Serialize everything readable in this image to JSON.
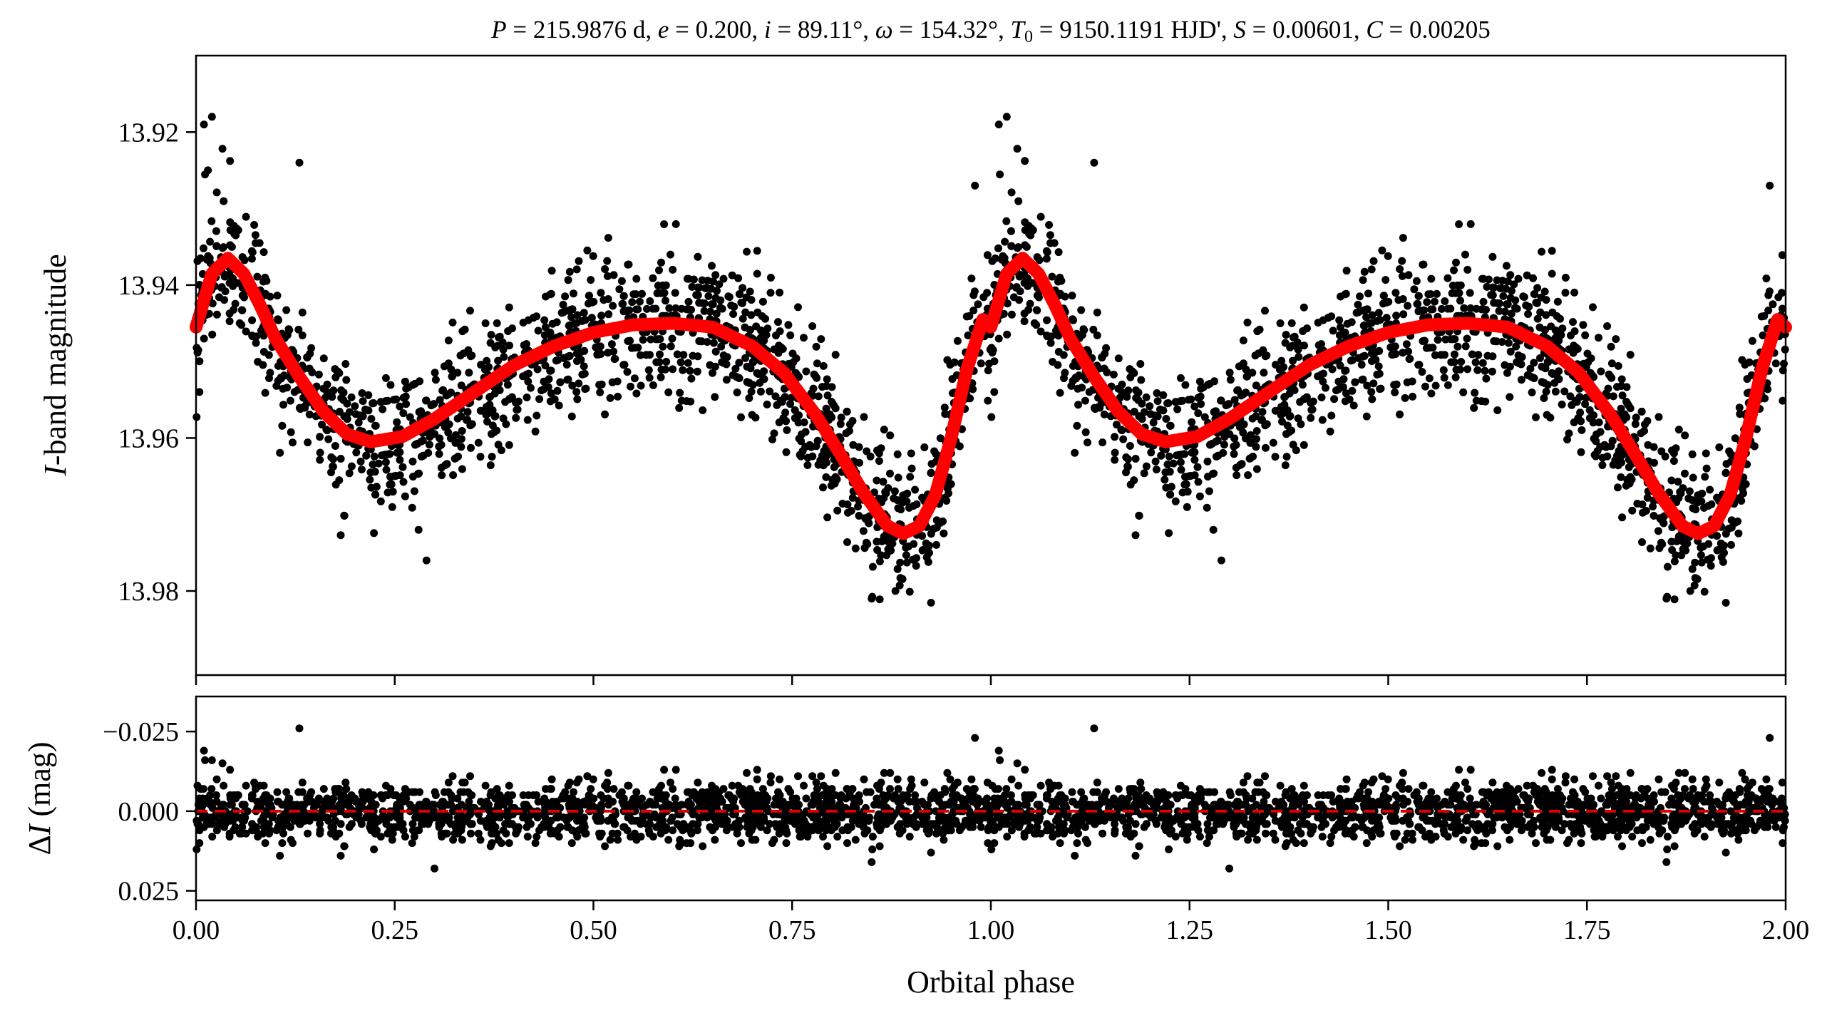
{
  "figure_title": "P = 215.9876 d, e = 0.200, i = 89.11°, ω = 154.32°, T0 = 9150.1191 HJD', S = 0.00601, C = 0.00205",
  "chart_data": [
    {
      "type": "scatter",
      "panel": "light curve",
      "title": "P = 215.9876 d, e = 0.200, i = 89.11°, ω = 154.32°, T0 = 9150.1191 HJD', S = 0.00601, C = 0.00205",
      "xlabel": "",
      "ylabel": "I-band magnitude",
      "xlim": [
        0.0,
        2.0
      ],
      "ylim": [
        13.991,
        13.91
      ],
      "y_inverted": true,
      "yticks": [
        13.92,
        13.94,
        13.96,
        13.98
      ],
      "ytick_labels": [
        "13.92",
        "13.94",
        "13.96",
        "13.98"
      ],
      "xticks": [
        0.0,
        0.25,
        0.5,
        0.75,
        1.0,
        1.25,
        1.5,
        1.75,
        2.0
      ],
      "grid": false,
      "series": [
        {
          "kind": "points",
          "color": "#000000",
          "description_of_values": "photometric observations folded in phase and repeated over two cycles",
          "envelope": {
            "phase": [
              0.0,
              0.04,
              0.1,
              0.15,
              0.22,
              0.3,
              0.4,
              0.5,
              0.6,
              0.7,
              0.8,
              0.85,
              0.89,
              0.95,
              1.0
            ],
            "model_mag": [
              13.945,
              13.9365,
              13.943,
              13.955,
              13.9605,
              13.9575,
              13.951,
              13.9465,
              13.945,
              13.9485,
              13.9625,
              13.9705,
              13.9725,
              13.9595,
              13.945
            ],
            "scatter_sd_mag": 0.0045
          },
          "outliers": [
            {
              "x": 0.01,
              "y": 13.919
            },
            {
              "x": 0.02,
              "y": 13.918
            },
            {
              "x": 0.015,
              "y": 13.925
            },
            {
              "x": 0.13,
              "y": 13.924
            },
            {
              "x": 0.29,
              "y": 13.976
            },
            {
              "x": 0.28,
              "y": 13.972
            },
            {
              "x": 0.85,
              "y": 13.981
            },
            {
              "x": 0.88,
              "y": 13.98
            },
            {
              "x": 0.98,
              "y": 13.927
            },
            {
              "x": 1.01,
              "y": 13.919
            },
            {
              "x": 1.02,
              "y": 13.918
            },
            {
              "x": 1.13,
              "y": 13.924
            },
            {
              "x": 1.29,
              "y": 13.976
            },
            {
              "x": 1.28,
              "y": 13.972
            },
            {
              "x": 1.85,
              "y": 13.981
            },
            {
              "x": 1.88,
              "y": 13.98
            },
            {
              "x": 1.98,
              "y": 13.927
            }
          ]
        },
        {
          "kind": "line",
          "color": "#ff0000",
          "x": [
            0.0,
            0.02,
            0.04,
            0.06,
            0.08,
            0.1,
            0.13,
            0.16,
            0.19,
            0.22,
            0.26,
            0.3,
            0.35,
            0.4,
            0.45,
            0.5,
            0.55,
            0.6,
            0.65,
            0.7,
            0.74,
            0.78,
            0.81,
            0.84,
            0.87,
            0.89,
            0.91,
            0.93,
            0.95,
            0.97,
            0.99,
            1.0,
            1.02,
            1.04,
            1.06,
            1.08,
            1.1,
            1.13,
            1.16,
            1.19,
            1.22,
            1.26,
            1.3,
            1.35,
            1.4,
            1.45,
            1.5,
            1.55,
            1.6,
            1.65,
            1.7,
            1.74,
            1.78,
            1.81,
            1.84,
            1.87,
            1.89,
            1.91,
            1.93,
            1.95,
            1.97,
            1.99,
            2.0
          ],
          "y": [
            13.9455,
            13.9385,
            13.9365,
            13.9385,
            13.9425,
            13.947,
            13.952,
            13.9565,
            13.9595,
            13.9605,
            13.9598,
            13.9575,
            13.954,
            13.9505,
            13.948,
            13.9462,
            13.9452,
            13.945,
            13.9455,
            13.948,
            13.9515,
            13.957,
            13.962,
            13.9672,
            13.9715,
            13.9725,
            13.9715,
            13.9675,
            13.96,
            13.951,
            13.9445,
            13.9455,
            13.9385,
            13.9365,
            13.9385,
            13.9425,
            13.947,
            13.952,
            13.9565,
            13.9595,
            13.9605,
            13.9598,
            13.9575,
            13.954,
            13.9505,
            13.948,
            13.9462,
            13.9452,
            13.945,
            13.9455,
            13.948,
            13.9515,
            13.957,
            13.962,
            13.9672,
            13.9715,
            13.9725,
            13.9715,
            13.9675,
            13.96,
            13.951,
            13.9445,
            13.9455
          ]
        }
      ]
    },
    {
      "type": "scatter",
      "panel": "residuals",
      "xlabel": "Orbital phase",
      "ylabel": "ΔI (mag)",
      "xlim": [
        0.0,
        2.0
      ],
      "ylim": [
        0.028,
        -0.036
      ],
      "y_inverted": true,
      "yticks": [
        -0.025,
        0.0,
        0.025
      ],
      "ytick_labels": [
        "−0.025",
        "0.000",
        "0.025"
      ],
      "xticks": [
        0.0,
        0.25,
        0.5,
        0.75,
        1.0,
        1.25,
        1.5,
        1.75,
        2.0
      ],
      "xtick_labels": [
        "0.00",
        "0.25",
        "0.50",
        "0.75",
        "1.00",
        "1.25",
        "1.50",
        "1.75",
        "2.00"
      ],
      "grid": false,
      "series": [
        {
          "kind": "points",
          "color": "#000000",
          "scatter_sd_mag": 0.0045,
          "outliers": [
            {
              "x": 0.01,
              "y": -0.019
            },
            {
              "x": 0.02,
              "y": -0.016
            },
            {
              "x": 0.13,
              "y": -0.026
            },
            {
              "x": 0.3,
              "y": 0.018
            },
            {
              "x": 0.85,
              "y": 0.016
            },
            {
              "x": 0.98,
              "y": -0.023
            },
            {
              "x": 1.01,
              "y": -0.019
            },
            {
              "x": 1.13,
              "y": -0.026
            },
            {
              "x": 1.3,
              "y": 0.018
            },
            {
              "x": 1.85,
              "y": 0.016
            },
            {
              "x": 1.98,
              "y": -0.023
            }
          ]
        },
        {
          "kind": "hline",
          "y": 0.0,
          "color": "#dd0000",
          "style": "dashed"
        }
      ]
    }
  ]
}
